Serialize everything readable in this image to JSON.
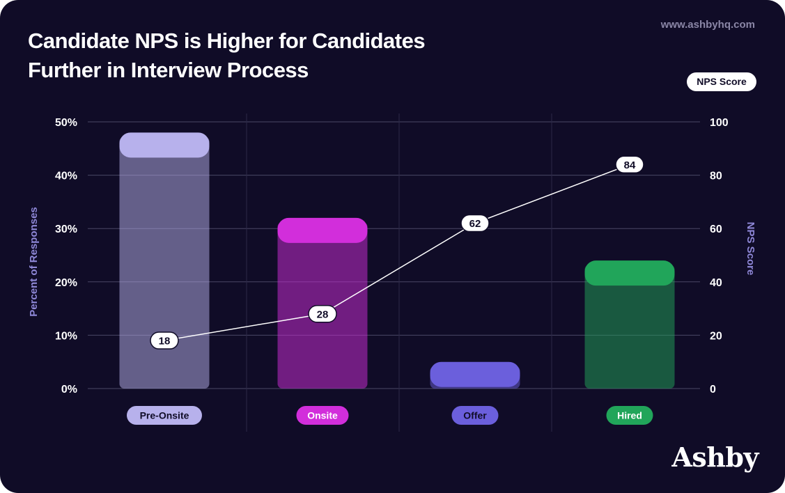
{
  "header": {
    "title_line1": "Candidate NPS is Higher for Candidates",
    "title_line2": "Further in Interview Process",
    "site": "www.ashbyhq.com",
    "legend_pill": "NPS Score"
  },
  "brand": {
    "logo_text": "Ashby"
  },
  "colors": {
    "background": "#100c27",
    "pre_onsite": "#b7b1ec",
    "onsite": "#d22edb",
    "offer": "#6b5fdc",
    "hired": "#21a55a"
  },
  "chart_data": {
    "type": "bar",
    "categories": [
      "Pre-Onsite",
      "Onsite",
      "Offer",
      "Hired"
    ],
    "series": [
      {
        "values": [
          48,
          32,
          5,
          24
        ],
        "axis": "left",
        "kind": "bar"
      },
      {
        "name": "NPS Score",
        "values": [
          18,
          28,
          62,
          84
        ],
        "axis": "right",
        "kind": "line"
      }
    ],
    "left_axis": {
      "label": "Percent of Responses",
      "ylim": [
        0,
        50
      ],
      "ticks": [
        "0%",
        "10%",
        "20%",
        "30%",
        "40%",
        "50%"
      ]
    },
    "right_axis": {
      "label": "NPS Score",
      "ylim": [
        0,
        100
      ],
      "ticks": [
        "0",
        "20",
        "40",
        "60",
        "80",
        "100"
      ]
    },
    "bar_colors": [
      "#b7b1ec",
      "#d22edb",
      "#6b5fdc",
      "#21a55a"
    ],
    "category_label_text_colors": [
      "#100c27",
      "#ffffff",
      "#100c27",
      "#ffffff"
    ],
    "grid": true
  }
}
